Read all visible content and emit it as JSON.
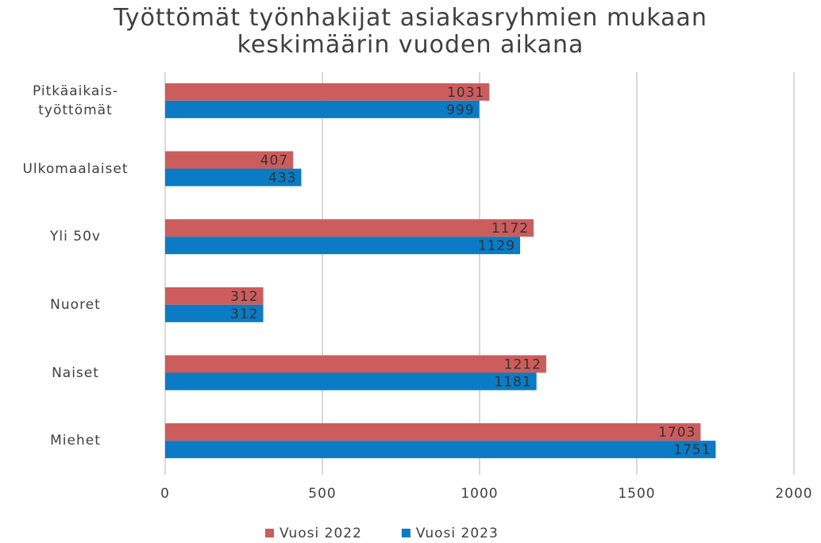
{
  "chart_data": {
    "type": "hbar",
    "title": "Työttömät työnhakijat asiakasryhmien mukaan keskimäärin vuoden aikana",
    "categories": [
      "Pitkäaikais-työttömät",
      "Ulkomaalaiset",
      "Yli 50v",
      "Nuoret",
      "Naiset",
      "Miehet"
    ],
    "series": [
      {
        "name": "Vuosi 2022",
        "color": "#cd5c5c",
        "values": [
          1031,
          407,
          1172,
          312,
          1212,
          1703
        ]
      },
      {
        "name": "Vuosi 2023",
        "color": "#0a7bc4",
        "values": [
          999,
          433,
          1129,
          312,
          1181,
          1751
        ]
      }
    ],
    "xlim": [
      0,
      2000
    ],
    "xticks": [
      0,
      500,
      1000,
      1500,
      2000
    ],
    "grid": true,
    "legend": "bottom"
  }
}
